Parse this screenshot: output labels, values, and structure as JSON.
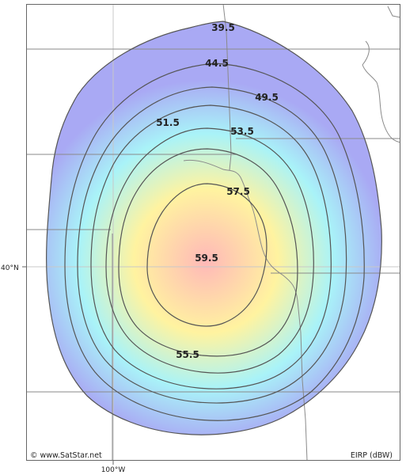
{
  "map": {
    "colors": {
      "center": "#ffb8b8",
      "yellow": "#fff3a0",
      "cyan": "#a9f3f8",
      "outer": "#a9a9f4",
      "contour": "#555555",
      "border": "#8a8a8a",
      "grid": "#c8c8c8"
    },
    "contour_labels": [
      "39.5",
      "44.5",
      "49.5",
      "51.5",
      "53.5",
      "57.5",
      "59.5",
      "55.5"
    ],
    "latitude_label": "40°N",
    "longitude_label": "100°W",
    "copyright": "© www.SatStar.net",
    "units_label": "EIRP (dBW)"
  }
}
